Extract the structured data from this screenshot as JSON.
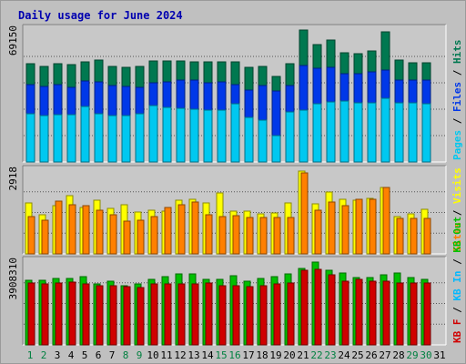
{
  "chart_data": {
    "type": "bar",
    "title": "Daily usage for June 2024",
    "colors": {
      "title": "#0000b0",
      "background": "#c0c0c0",
      "plot_background": "#c8c8c8",
      "grid": "#555555",
      "hits": "#007850",
      "files": "#0038e8",
      "pages": "#00c8f0",
      "visits": "#ffff00",
      "sites": "#ff8000",
      "kbin": "#00b8ff",
      "kbout": "#00c000",
      "kbf": "#d00000",
      "day_weekday": "#000000",
      "day_weekend": "#008040"
    },
    "days": [
      "1",
      "2",
      "3",
      "4",
      "5",
      "6",
      "7",
      "8",
      "9",
      "10",
      "11",
      "12",
      "13",
      "14",
      "15",
      "16",
      "17",
      "18",
      "19",
      "20",
      "21",
      "22",
      "23",
      "24",
      "25",
      "26",
      "27",
      "28",
      "29",
      "30",
      "31"
    ],
    "weekend_days": [
      "1",
      "2",
      "8",
      "9",
      "15",
      "16",
      "22",
      "23",
      "29",
      "30"
    ],
    "panels": [
      {
        "id": "hits-files-pages",
        "max_label": "69150",
        "ymax": 69150,
        "legend": [
          {
            "text": "Pages",
            "color_key": "pages"
          },
          {
            "text": "Files",
            "color_key": "files"
          },
          {
            "text": "Hits",
            "color_key": "hits"
          }
        ],
        "series": [
          {
            "name": "Hits",
            "color_key": "hits",
            "values": [
              51400,
              50200,
              51700,
              50800,
              52500,
              53200,
              50000,
              49500,
              50000,
              52800,
              52800,
              53000,
              52300,
              52300,
              52500,
              52300,
              49700,
              50000,
              45000,
              51600,
              69150,
              61300,
              63700,
              57100,
              56900,
              58400,
              68100,
              53400,
              51900,
              51900,
              null
            ]
          },
          {
            "name": "Files",
            "color_key": "files",
            "values": [
              40700,
              39700,
              40500,
              39300,
              42300,
              42200,
              39900,
              39500,
              39000,
              41500,
              41900,
              42800,
              42700,
              41600,
              41900,
              40700,
              37700,
              40000,
              37000,
              40000,
              50400,
              49300,
              49700,
              46300,
              46400,
              47000,
              48300,
              42700,
              42700,
              42700,
              null
            ]
          },
          {
            "name": "Pages",
            "color_key": "pages",
            "values": [
              25200,
              24300,
              24800,
              24700,
              29200,
              25400,
              24100,
              24200,
              25500,
              29500,
              28700,
              27900,
              27700,
              27100,
              27300,
              30400,
              23300,
              21800,
              13800,
              26300,
              27300,
              30400,
              31500,
              31900,
              30900,
              31100,
              33500,
              31100,
              30800,
              30400,
              null
            ]
          }
        ]
      },
      {
        "id": "visits-sites",
        "max_label": "2918",
        "ymax": 2918,
        "legend": [
          {
            "text": "Sites",
            "color_key": "sites"
          },
          {
            "text": "Visits",
            "color_key": "visits"
          }
        ],
        "series": [
          {
            "name": "Visits",
            "color_key": "visits",
            "values": [
              1800,
              1370,
              1710,
              2050,
              1630,
              1900,
              1600,
              1720,
              1480,
              1530,
              1500,
              1900,
              1920,
              1800,
              2150,
              1500,
              1500,
              1410,
              1430,
              1800,
              2918,
              1750,
              2180,
              1920,
              1900,
              1960,
              2350,
              1320,
              1420,
              1560,
              null
            ]
          },
          {
            "name": "Sites",
            "color_key": "sites",
            "values": [
              1310,
              1200,
              1850,
              1730,
              1700,
              1550,
              1380,
              1160,
              1180,
              1300,
              1650,
              1720,
              1840,
              1370,
              1330,
              1350,
              1270,
              1270,
              1290,
              1290,
              2850,
              1530,
              1830,
              1700,
              1930,
              1920,
              2350,
              1260,
              1260,
              1260,
              null
            ]
          }
        ]
      },
      {
        "id": "kbytes",
        "max_label": "3908310",
        "ymax": 3908310,
        "legend": [
          {
            "text": "KB F",
            "color_key": "kbf"
          },
          {
            "text": "KB In",
            "color_key": "kbin"
          },
          {
            "text": "KB Out",
            "color_key": "kbout"
          }
        ],
        "series": [
          {
            "name": "KB Out",
            "color_key": "kbout",
            "values": [
              3050000,
              3030000,
              3150000,
              3130000,
              3240000,
              2880000,
              3010000,
              2790000,
              2880000,
              3090000,
              3240000,
              3340000,
              3340000,
              3090000,
              3090000,
              3260000,
              3010000,
              3130000,
              3210000,
              3340000,
              3620000,
              3900000,
              3530000,
              3400000,
              3180000,
              3180000,
              3300000,
              3390000,
              3160000,
              3090000,
              null
            ]
          },
          {
            "name": "KB F",
            "color_key": "kbf",
            "values": [
              2900000,
              2880000,
              2940000,
              2960000,
              2860000,
              2790000,
              2790000,
              2750000,
              2710000,
              2860000,
              2860000,
              2860000,
              2860000,
              2910000,
              2790000,
              2790000,
              2760000,
              2790000,
              2860000,
              2910000,
              3520000,
              3550000,
              3290000,
              3000000,
              3080000,
              3000000,
              3000000,
              2910000,
              2910000,
              2910000,
              null
            ]
          }
        ]
      }
    ]
  }
}
